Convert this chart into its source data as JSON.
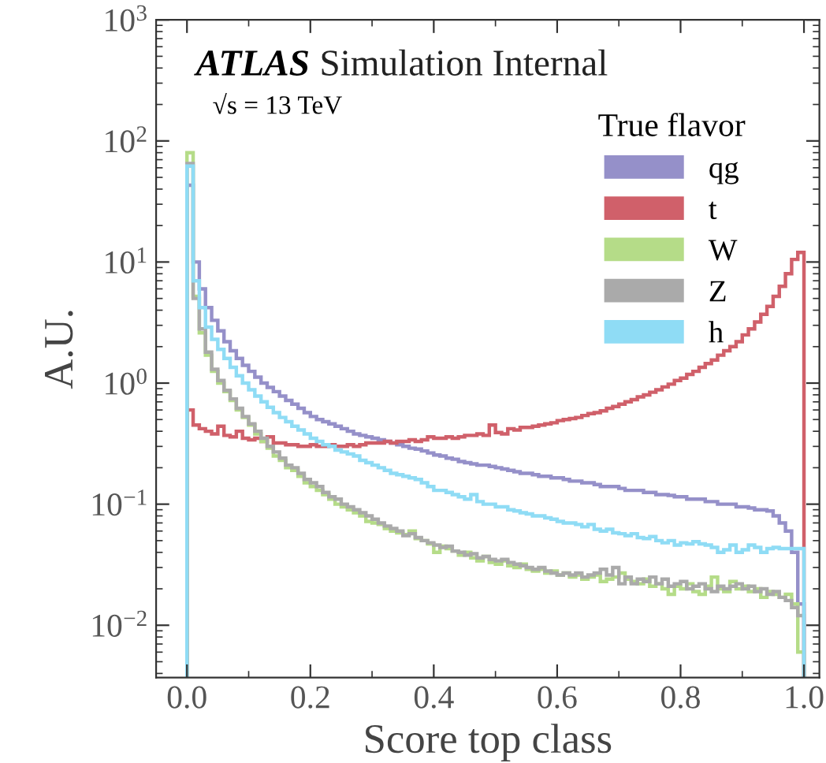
{
  "chart_data": {
    "type": "histogram",
    "xlabel": "Score top class",
    "ylabel": "A.U.",
    "legend_title": "True flavor",
    "annotations": [
      "ATLAS",
      "Simulation Internal",
      "√s = 13 TeV"
    ],
    "bins": [
      0,
      0.01,
      0.02,
      0.03,
      0.04,
      0.05,
      0.06,
      0.07,
      0.08,
      0.09,
      0.1,
      0.11,
      0.12,
      0.13,
      0.14,
      0.15,
      0.16,
      0.17,
      0.18,
      0.19,
      0.2,
      0.21,
      0.22,
      0.23,
      0.24,
      0.25,
      0.26,
      0.27,
      0.28,
      0.29,
      0.3,
      0.31,
      0.32,
      0.33,
      0.34,
      0.35,
      0.36,
      0.37,
      0.38,
      0.39,
      0.4,
      0.41,
      0.42,
      0.43,
      0.44,
      0.45,
      0.46,
      0.47,
      0.48,
      0.49,
      0.5,
      0.51,
      0.52,
      0.53,
      0.54,
      0.55,
      0.56,
      0.57,
      0.58,
      0.59,
      0.6,
      0.61,
      0.62,
      0.63,
      0.64,
      0.65,
      0.66,
      0.67,
      0.68,
      0.69,
      0.7,
      0.71,
      0.72,
      0.73,
      0.74,
      0.75,
      0.76,
      0.77,
      0.78,
      0.79,
      0.8,
      0.81,
      0.82,
      0.83,
      0.84,
      0.85,
      0.86,
      0.87,
      0.88,
      0.89,
      0.9,
      0.91,
      0.92,
      0.93,
      0.94,
      0.95,
      0.96,
      0.97,
      0.98,
      0.99,
      1.0
    ],
    "series": [
      {
        "name": "qg",
        "color": "#9590c9",
        "values": [
          43,
          10,
          6,
          4.2,
          3.3,
          2.7,
          2.2,
          1.85,
          1.6,
          1.4,
          1.25,
          1.12,
          1.0,
          0.92,
          0.85,
          0.78,
          0.72,
          0.67,
          0.62,
          0.57,
          0.53,
          0.5,
          0.48,
          0.46,
          0.44,
          0.42,
          0.4,
          0.38,
          0.37,
          0.36,
          0.35,
          0.34,
          0.33,
          0.32,
          0.31,
          0.3,
          0.29,
          0.285,
          0.275,
          0.265,
          0.255,
          0.25,
          0.24,
          0.235,
          0.225,
          0.22,
          0.215,
          0.21,
          0.21,
          0.205,
          0.2,
          0.195,
          0.19,
          0.185,
          0.18,
          0.18,
          0.175,
          0.17,
          0.17,
          0.165,
          0.165,
          0.16,
          0.155,
          0.155,
          0.15,
          0.15,
          0.145,
          0.14,
          0.14,
          0.14,
          0.135,
          0.13,
          0.13,
          0.13,
          0.125,
          0.125,
          0.12,
          0.12,
          0.118,
          0.115,
          0.115,
          0.11,
          0.11,
          0.11,
          0.105,
          0.105,
          0.1,
          0.1,
          0.1,
          0.095,
          0.095,
          0.093,
          0.09,
          0.09,
          0.088,
          0.08,
          0.07,
          0.06,
          0.04,
          0.015
        ]
      },
      {
        "name": "t",
        "color": "#d0606a",
        "values": [
          0.6,
          0.45,
          0.42,
          0.4,
          0.38,
          0.44,
          0.37,
          0.36,
          0.4,
          0.35,
          0.34,
          0.35,
          0.33,
          0.36,
          0.32,
          0.32,
          0.31,
          0.31,
          0.3,
          0.3,
          0.31,
          0.3,
          0.3,
          0.31,
          0.3,
          0.3,
          0.31,
          0.3,
          0.31,
          0.32,
          0.32,
          0.32,
          0.33,
          0.32,
          0.33,
          0.33,
          0.34,
          0.33,
          0.34,
          0.36,
          0.35,
          0.35,
          0.36,
          0.35,
          0.36,
          0.37,
          0.37,
          0.38,
          0.37,
          0.45,
          0.39,
          0.38,
          0.42,
          0.41,
          0.43,
          0.43,
          0.44,
          0.45,
          0.46,
          0.47,
          0.49,
          0.5,
          0.51,
          0.52,
          0.54,
          0.56,
          0.57,
          0.59,
          0.62,
          0.64,
          0.67,
          0.7,
          0.73,
          0.77,
          0.8,
          0.84,
          0.88,
          0.93,
          0.98,
          1.05,
          1.1,
          1.18,
          1.25,
          1.35,
          1.45,
          1.55,
          1.7,
          1.85,
          2.0,
          2.2,
          2.5,
          2.8,
          3.2,
          3.7,
          4.3,
          5.2,
          6.3,
          8.0,
          10.5,
          12
        ]
      },
      {
        "name": "W",
        "color": "#b5dc88",
        "values": [
          80,
          5.2,
          2.6,
          1.7,
          1.25,
          1.0,
          0.85,
          0.72,
          0.6,
          0.52,
          0.45,
          0.38,
          0.33,
          0.29,
          0.25,
          0.23,
          0.2,
          0.19,
          0.17,
          0.15,
          0.14,
          0.13,
          0.12,
          0.11,
          0.1,
          0.095,
          0.09,
          0.085,
          0.08,
          0.072,
          0.07,
          0.068,
          0.063,
          0.06,
          0.058,
          0.056,
          0.06,
          0.052,
          0.05,
          0.047,
          0.04,
          0.045,
          0.043,
          0.041,
          0.038,
          0.04,
          0.036,
          0.034,
          0.037,
          0.033,
          0.032,
          0.034,
          0.031,
          0.03,
          0.032,
          0.029,
          0.028,
          0.029,
          0.027,
          0.028,
          0.026,
          0.027,
          0.025,
          0.026,
          0.024,
          0.025,
          0.026,
          0.023,
          0.024,
          0.025,
          0.027,
          0.024,
          0.023,
          0.022,
          0.024,
          0.021,
          0.022,
          0.02,
          0.018,
          0.021,
          0.02,
          0.022,
          0.019,
          0.018,
          0.021,
          0.025,
          0.02,
          0.019,
          0.023,
          0.02,
          0.021,
          0.019,
          0.02,
          0.017,
          0.019,
          0.018,
          0.017,
          0.018,
          0.015,
          0.006
        ]
      },
      {
        "name": "Z",
        "color": "#aaaaaa",
        "values": [
          65,
          5.0,
          2.8,
          1.8,
          1.3,
          1.05,
          0.87,
          0.74,
          0.62,
          0.53,
          0.46,
          0.4,
          0.35,
          0.3,
          0.27,
          0.24,
          0.21,
          0.2,
          0.18,
          0.16,
          0.15,
          0.14,
          0.125,
          0.115,
          0.11,
          0.1,
          0.095,
          0.09,
          0.085,
          0.08,
          0.075,
          0.07,
          0.066,
          0.063,
          0.06,
          0.055,
          0.057,
          0.053,
          0.05,
          0.048,
          0.046,
          0.044,
          0.045,
          0.041,
          0.04,
          0.038,
          0.039,
          0.036,
          0.037,
          0.035,
          0.034,
          0.035,
          0.033,
          0.032,
          0.031,
          0.03,
          0.029,
          0.03,
          0.028,
          0.027,
          0.026,
          0.027,
          0.026,
          0.027,
          0.025,
          0.026,
          0.027,
          0.029,
          0.026,
          0.03,
          0.022,
          0.025,
          0.022,
          0.024,
          0.023,
          0.025,
          0.022,
          0.024,
          0.021,
          0.022,
          0.023,
          0.02,
          0.021,
          0.022,
          0.02,
          0.019,
          0.021,
          0.02,
          0.021,
          0.022,
          0.02,
          0.021,
          0.019,
          0.02,
          0.018,
          0.019,
          0.017,
          0.016,
          0.014,
          0.012
        ]
      },
      {
        "name": "h",
        "color": "#8fdcf5",
        "values": [
          62,
          7,
          4.2,
          2.9,
          2.3,
          1.9,
          1.6,
          1.35,
          1.15,
          1.0,
          0.88,
          0.78,
          0.7,
          0.63,
          0.57,
          0.52,
          0.48,
          0.44,
          0.41,
          0.38,
          0.35,
          0.33,
          0.31,
          0.3,
          0.28,
          0.27,
          0.26,
          0.25,
          0.23,
          0.22,
          0.21,
          0.2,
          0.19,
          0.18,
          0.175,
          0.17,
          0.165,
          0.16,
          0.15,
          0.14,
          0.13,
          0.13,
          0.125,
          0.12,
          0.115,
          0.11,
          0.12,
          0.105,
          0.1,
          0.1,
          0.095,
          0.095,
          0.09,
          0.088,
          0.085,
          0.083,
          0.08,
          0.08,
          0.077,
          0.075,
          0.072,
          0.07,
          0.07,
          0.068,
          0.065,
          0.068,
          0.062,
          0.06,
          0.062,
          0.058,
          0.057,
          0.055,
          0.057,
          0.053,
          0.052,
          0.054,
          0.05,
          0.048,
          0.05,
          0.046,
          0.048,
          0.047,
          0.049,
          0.047,
          0.046,
          0.044,
          0.04,
          0.042,
          0.046,
          0.04,
          0.042,
          0.046,
          0.044,
          0.04,
          0.043,
          0.044,
          0.043,
          0.043,
          0.043,
          0.043
        ]
      }
    ],
    "xlim": [
      -0.05,
      1.025
    ],
    "xticks": [
      {
        "value": 0,
        "label": "0.0"
      },
      0.2,
      0.4,
      0.6,
      0.8,
      {
        "value": 1,
        "label": "1.0"
      }
    ],
    "ylim": [
      0.0037,
      1000
    ],
    "log": true,
    "yticks": [
      {
        "value": 0.01,
        "label": "10$^{−2}$"
      },
      {
        "value": 0.1,
        "label": "10$^{−1}$"
      },
      {
        "value": 1,
        "label": "10$^{0}$"
      },
      {
        "value": 10,
        "label": "10$^{1}$"
      },
      {
        "value": 100,
        "label": "10$^{2}$"
      },
      {
        "value": 1000,
        "label": "10$^{3}$"
      }
    ],
    "legend": "top right",
    "grid": false
  }
}
